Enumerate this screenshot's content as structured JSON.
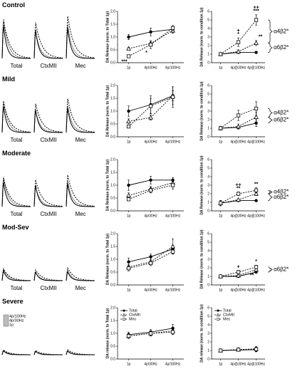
{
  "rows": [
    {
      "label": "Control",
      "trace_labels": [
        "Total",
        "CtxMII",
        "Mec"
      ]
    },
    {
      "label": "Mild",
      "trace_labels": [
        "Total",
        "CtxMII",
        "Mec"
      ]
    },
    {
      "label": "Moderate",
      "trace_labels": [
        "Total",
        "CtxMII",
        "Mec"
      ]
    },
    {
      "label": "Mod-Sev",
      "trace_labels": [
        "Total",
        "CtxMII",
        "Mec"
      ]
    },
    {
      "label": "Severe",
      "trace_legend": [
        "4p/100Hz",
        "4p/30Hz",
        "1p"
      ]
    }
  ],
  "chart_data": [
    {
      "type": "line",
      "ylabel": "DA Release (norm. to Total 1p)",
      "categories": [
        "1p",
        "4p/30Hz",
        "4p/100Hz"
      ],
      "ylim": [
        0,
        2
      ],
      "yticks": [
        {
          "value": 0,
          "label": "0.0"
        },
        {
          "value": 0.5,
          "label": "0.5"
        },
        {
          "value": 1,
          "label": "1.0"
        },
        {
          "value": 1.5,
          "label": "1.5"
        },
        {
          "value": 2,
          "label": "2.0"
        }
      ],
      "series": [
        {
          "color": "#000000",
          "marker": "circle",
          "dashed": false,
          "values": [
            1.0,
            1.2,
            1.3
          ],
          "errors": [
            0.1,
            0.15,
            0.1
          ]
        },
        {
          "color": "#000000",
          "marker": "triangle",
          "dashed": true,
          "values": [
            0.55,
            0.75,
            1.25
          ],
          "errors": [
            0.05,
            0.1,
            0.1
          ]
        },
        {
          "color": "#000000",
          "marker": "square",
          "dashed": true,
          "values": [
            0.25,
            0.7,
            1.35
          ],
          "errors": [
            0.05,
            0.15,
            0.1
          ]
        }
      ],
      "annotations": [
        {
          "text": "***",
          "series": 2,
          "category": 0,
          "below": true
        },
        {
          "text": "*",
          "series": 2,
          "category": 1,
          "below": true
        }
      ]
    },
    {
      "type": "line",
      "ylabel": "DA Release (norm. to condition 1p)",
      "categories": [
        "1p",
        "4p@30Hz",
        "4p@100Hz"
      ],
      "ylim": [
        0,
        6
      ],
      "yticks": [
        0,
        1,
        2,
        3,
        4,
        5,
        6
      ],
      "series": [
        {
          "color": "#000000",
          "marker": "circle",
          "dashed": false,
          "values": [
            1.0,
            1.2,
            1.2
          ],
          "errors": [
            0.1,
            0.1,
            0.1
          ]
        },
        {
          "color": "#000000",
          "marker": "triangle",
          "dashed": true,
          "values": [
            1.0,
            1.3,
            2.3
          ],
          "errors": [
            0.1,
            0.2,
            0.3
          ]
        },
        {
          "color": "#000000",
          "marker": "square",
          "dashed": true,
          "values": [
            1.0,
            2.4,
            5.0
          ],
          "errors": [
            0.1,
            0.5,
            0.6
          ]
        }
      ],
      "annotations": [
        {
          "text": "*",
          "series": 2,
          "category": 1
        },
        {
          "text": "+",
          "series": 2,
          "category": 1
        },
        {
          "text": "***",
          "series": 2,
          "category": 2
        },
        {
          "text": "++",
          "series": 2,
          "category": 2
        },
        {
          "text": "**",
          "series": 1,
          "category": 2
        }
      ],
      "brackets": [
        {
          "label": "α4β2*",
          "from": 2,
          "to": 1
        },
        {
          "label": "α6β2*",
          "from": 1,
          "to": 0
        }
      ]
    },
    {
      "type": "line",
      "ylabel": "DA Release (norm. to Total 1p)",
      "categories": [
        "1p",
        "4p/30Hz",
        "4p/100Hz"
      ],
      "ylim": [
        0,
        2
      ],
      "yticks": [
        {
          "value": 0,
          "label": "0.0"
        },
        {
          "value": 0.5,
          "label": "0.5"
        },
        {
          "value": 1,
          "label": "1.0"
        },
        {
          "value": 1.5,
          "label": "1.5"
        },
        {
          "value": 2,
          "label": "2.0"
        }
      ],
      "series": [
        {
          "color": "#000000",
          "marker": "circle",
          "dashed": false,
          "values": [
            1.0,
            1.25,
            1.6
          ],
          "errors": [
            0.2,
            0.35,
            0.2
          ]
        },
        {
          "color": "#000000",
          "marker": "triangle",
          "dashed": true,
          "values": [
            0.6,
            0.75,
            1.6
          ],
          "errors": [
            0.1,
            0.1,
            0.35
          ]
        },
        {
          "color": "#000000",
          "marker": "square",
          "dashed": true,
          "values": [
            0.4,
            1.2,
            1.55
          ],
          "errors": [
            0.05,
            0.3,
            0.4
          ]
        }
      ]
    },
    {
      "type": "line",
      "ylabel": "DA Release (norm. to condition 1p)",
      "categories": [
        "1p",
        "4p@30Hz",
        "4p@100Hz"
      ],
      "ylim": [
        0,
        6
      ],
      "yticks": [
        0,
        1,
        2,
        3,
        4,
        5,
        6
      ],
      "series": [
        {
          "color": "#000000",
          "marker": "circle",
          "dashed": false,
          "values": [
            1.0,
            1.1,
            1.6
          ],
          "errors": [
            0.2,
            0.2,
            0.4
          ]
        },
        {
          "color": "#000000",
          "marker": "triangle",
          "dashed": true,
          "values": [
            1.0,
            1.2,
            2.3
          ],
          "errors": [
            0.2,
            0.3,
            0.6
          ]
        },
        {
          "color": "#000000",
          "marker": "square",
          "dashed": true,
          "values": [
            1.0,
            2.5,
            3.3
          ],
          "errors": [
            0.2,
            0.6,
            0.8
          ]
        }
      ],
      "brackets": [
        {
          "label": "α4β2*",
          "from": 2,
          "to": 1
        },
        {
          "label": "α6β2*",
          "from": 1,
          "to": 0
        }
      ]
    },
    {
      "type": "line",
      "ylabel": "DA Release (norm. to Total 1p)",
      "categories": [
        "1p",
        "4p/30Hz",
        "4p/100Hz"
      ],
      "ylim": [
        0,
        2
      ],
      "yticks": [
        {
          "value": 0,
          "label": "0.0"
        },
        {
          "value": 0.5,
          "label": "0.5"
        },
        {
          "value": 1,
          "label": "1.0"
        },
        {
          "value": 1.5,
          "label": "1.5"
        },
        {
          "value": 2,
          "label": "2.0"
        }
      ],
      "series": [
        {
          "color": "#000000",
          "marker": "circle",
          "dashed": false,
          "values": [
            1.0,
            1.2,
            1.2
          ],
          "errors": [
            0.2,
            0.15,
            0.1
          ]
        },
        {
          "color": "#000000",
          "marker": "triangle",
          "dashed": true,
          "values": [
            0.6,
            0.85,
            1.1
          ],
          "errors": [
            0.1,
            0.1,
            0.1
          ]
        },
        {
          "color": "#000000",
          "marker": "square",
          "dashed": true,
          "values": [
            0.45,
            0.8,
            1.0
          ],
          "errors": [
            0.05,
            0.1,
            0.15
          ]
        }
      ]
    },
    {
      "type": "line",
      "ylabel": "DA Release (norm. to condition 1p)",
      "categories": [
        "1p",
        "4p@30Hz",
        "4p@100Hz"
      ],
      "ylim": [
        0,
        6
      ],
      "yticks": [
        0,
        1,
        2,
        3,
        4,
        5,
        6
      ],
      "series": [
        {
          "color": "#000000",
          "marker": "circle",
          "dashed": false,
          "values": [
            0.9,
            1.2,
            1.2
          ],
          "errors": [
            0.3,
            0.1,
            0.1
          ]
        },
        {
          "color": "#000000",
          "marker": "triangle",
          "dashed": true,
          "values": [
            0.9,
            1.3,
            2.0
          ],
          "errors": [
            0.3,
            0.1,
            0.2
          ]
        },
        {
          "color": "#000000",
          "marker": "square",
          "dashed": true,
          "values": [
            0.9,
            2.0,
            2.4
          ],
          "errors": [
            0.3,
            0.2,
            0.3
          ]
        }
      ],
      "annotations": [
        {
          "text": "**",
          "series": 2,
          "category": 1
        },
        {
          "text": "++",
          "series": 2,
          "category": 1
        },
        {
          "text": "**",
          "series": 2,
          "category": 2
        }
      ],
      "brackets": [
        {
          "label": "α4β2*",
          "from": 2,
          "to": 1
        },
        {
          "label": "α6β2*",
          "from": 1,
          "to": 0
        }
      ]
    },
    {
      "type": "line",
      "ylabel": "DA Release (norm. to Total 1p)",
      "categories": [
        "1p",
        "4p/30Hz",
        "4p/100Hz"
      ],
      "ylim": [
        0,
        2
      ],
      "yticks": [
        {
          "value": 0,
          "label": "0.0"
        },
        {
          "value": 0.5,
          "label": "0.5"
        },
        {
          "value": 1,
          "label": "1.0"
        },
        {
          "value": 1.5,
          "label": "1.5"
        },
        {
          "value": 2,
          "label": "2.0"
        }
      ],
      "series": [
        {
          "color": "#000000",
          "marker": "circle",
          "dashed": false,
          "values": [
            0.9,
            1.1,
            1.4
          ],
          "errors": [
            0.15,
            0.1,
            0.15
          ]
        },
        {
          "color": "#000000",
          "marker": "triangle",
          "dashed": true,
          "values": [
            0.7,
            0.9,
            1.5
          ],
          "errors": [
            0.1,
            0.1,
            0.3
          ]
        },
        {
          "color": "#000000",
          "marker": "square",
          "dashed": true,
          "values": [
            0.65,
            0.85,
            1.3
          ],
          "errors": [
            0.1,
            0.1,
            0.1
          ]
        }
      ]
    },
    {
      "type": "line",
      "ylabel": "DA Release (norm. to condition 1p)",
      "categories": [
        "1p",
        "4p@30Hz",
        "4p@100Hz"
      ],
      "ylim": [
        0,
        6
      ],
      "yticks": [
        0,
        1,
        2,
        3,
        4,
        5,
        6
      ],
      "series": [
        {
          "color": "#000000",
          "marker": "circle",
          "dashed": false,
          "values": [
            1.0,
            1.0,
            1.5
          ],
          "errors": [
            0.1,
            0.1,
            0.1
          ]
        },
        {
          "color": "#000000",
          "marker": "triangle",
          "dashed": true,
          "values": [
            1.0,
            1.1,
            1.8
          ],
          "errors": [
            0.1,
            0.1,
            0.2
          ]
        },
        {
          "color": "#000000",
          "marker": "square",
          "dashed": true,
          "values": [
            1.0,
            1.5,
            2.1
          ],
          "errors": [
            0.1,
            0.2,
            0.2
          ]
        }
      ],
      "annotations": [
        {
          "text": "+",
          "series": 2,
          "category": 1
        },
        {
          "text": "*",
          "series": 2,
          "category": 2
        },
        {
          "text": "**",
          "series": 1,
          "category": 2,
          "below": true
        }
      ],
      "brackets": [
        {
          "label": "α6β2*",
          "from": 2,
          "to": 0
        }
      ]
    },
    {
      "type": "line",
      "ylabel": "DA release (norm. to Total 1p)",
      "categories": [
        "1p",
        "4p/30Hz",
        "4p/100Hz"
      ],
      "ylim": [
        0,
        2
      ],
      "yticks": [
        {
          "value": 0,
          "label": "0.0"
        },
        {
          "value": 0.5,
          "label": "0.5"
        },
        {
          "value": 1,
          "label": "1.0"
        },
        {
          "value": 1.5,
          "label": "1.5"
        },
        {
          "value": 2,
          "label": "2.0"
        }
      ],
      "legend": "upper left",
      "series": [
        {
          "name": "Total",
          "color": "#000000",
          "marker": "circle",
          "dashed": false,
          "values": [
            0.95,
            1.05,
            1.2
          ],
          "errors": [
            0.1,
            0.1,
            0.15
          ]
        },
        {
          "name": "CtxMII",
          "color": "#000000",
          "marker": "triangle",
          "dashed": true,
          "values": [
            0.9,
            1.0,
            1.1
          ],
          "errors": [
            0.1,
            0.1,
            0.1
          ]
        },
        {
          "name": "Mec",
          "color": "#000000",
          "marker": "square",
          "dashed": true,
          "values": [
            0.9,
            1.0,
            1.05
          ],
          "errors": [
            0.1,
            0.1,
            0.1
          ]
        }
      ]
    },
    {
      "type": "line",
      "ylabel": "DA release (norm. to condition 1p)",
      "categories": [
        "1p",
        "4p@30Hz",
        "4p@100Hz"
      ],
      "ylim": [
        0,
        6
      ],
      "yticks": [
        0,
        1,
        2,
        3,
        4,
        5,
        6
      ],
      "legend": "upper left",
      "series": [
        {
          "name": "Total",
          "color": "#000000",
          "marker": "circle",
          "dashed": false,
          "values": [
            1.0,
            1.05,
            1.1
          ],
          "errors": [
            0.1,
            0.15,
            0.2
          ]
        },
        {
          "name": "CtxMII",
          "color": "#000000",
          "marker": "triangle",
          "dashed": true,
          "values": [
            1.0,
            1.1,
            1.2
          ],
          "errors": [
            0.1,
            0.15,
            0.2
          ]
        },
        {
          "name": "Mec",
          "color": "#000000",
          "marker": "square",
          "dashed": true,
          "values": [
            1.0,
            1.1,
            1.15
          ],
          "errors": [
            0.1,
            0.2,
            0.3
          ]
        }
      ]
    }
  ]
}
